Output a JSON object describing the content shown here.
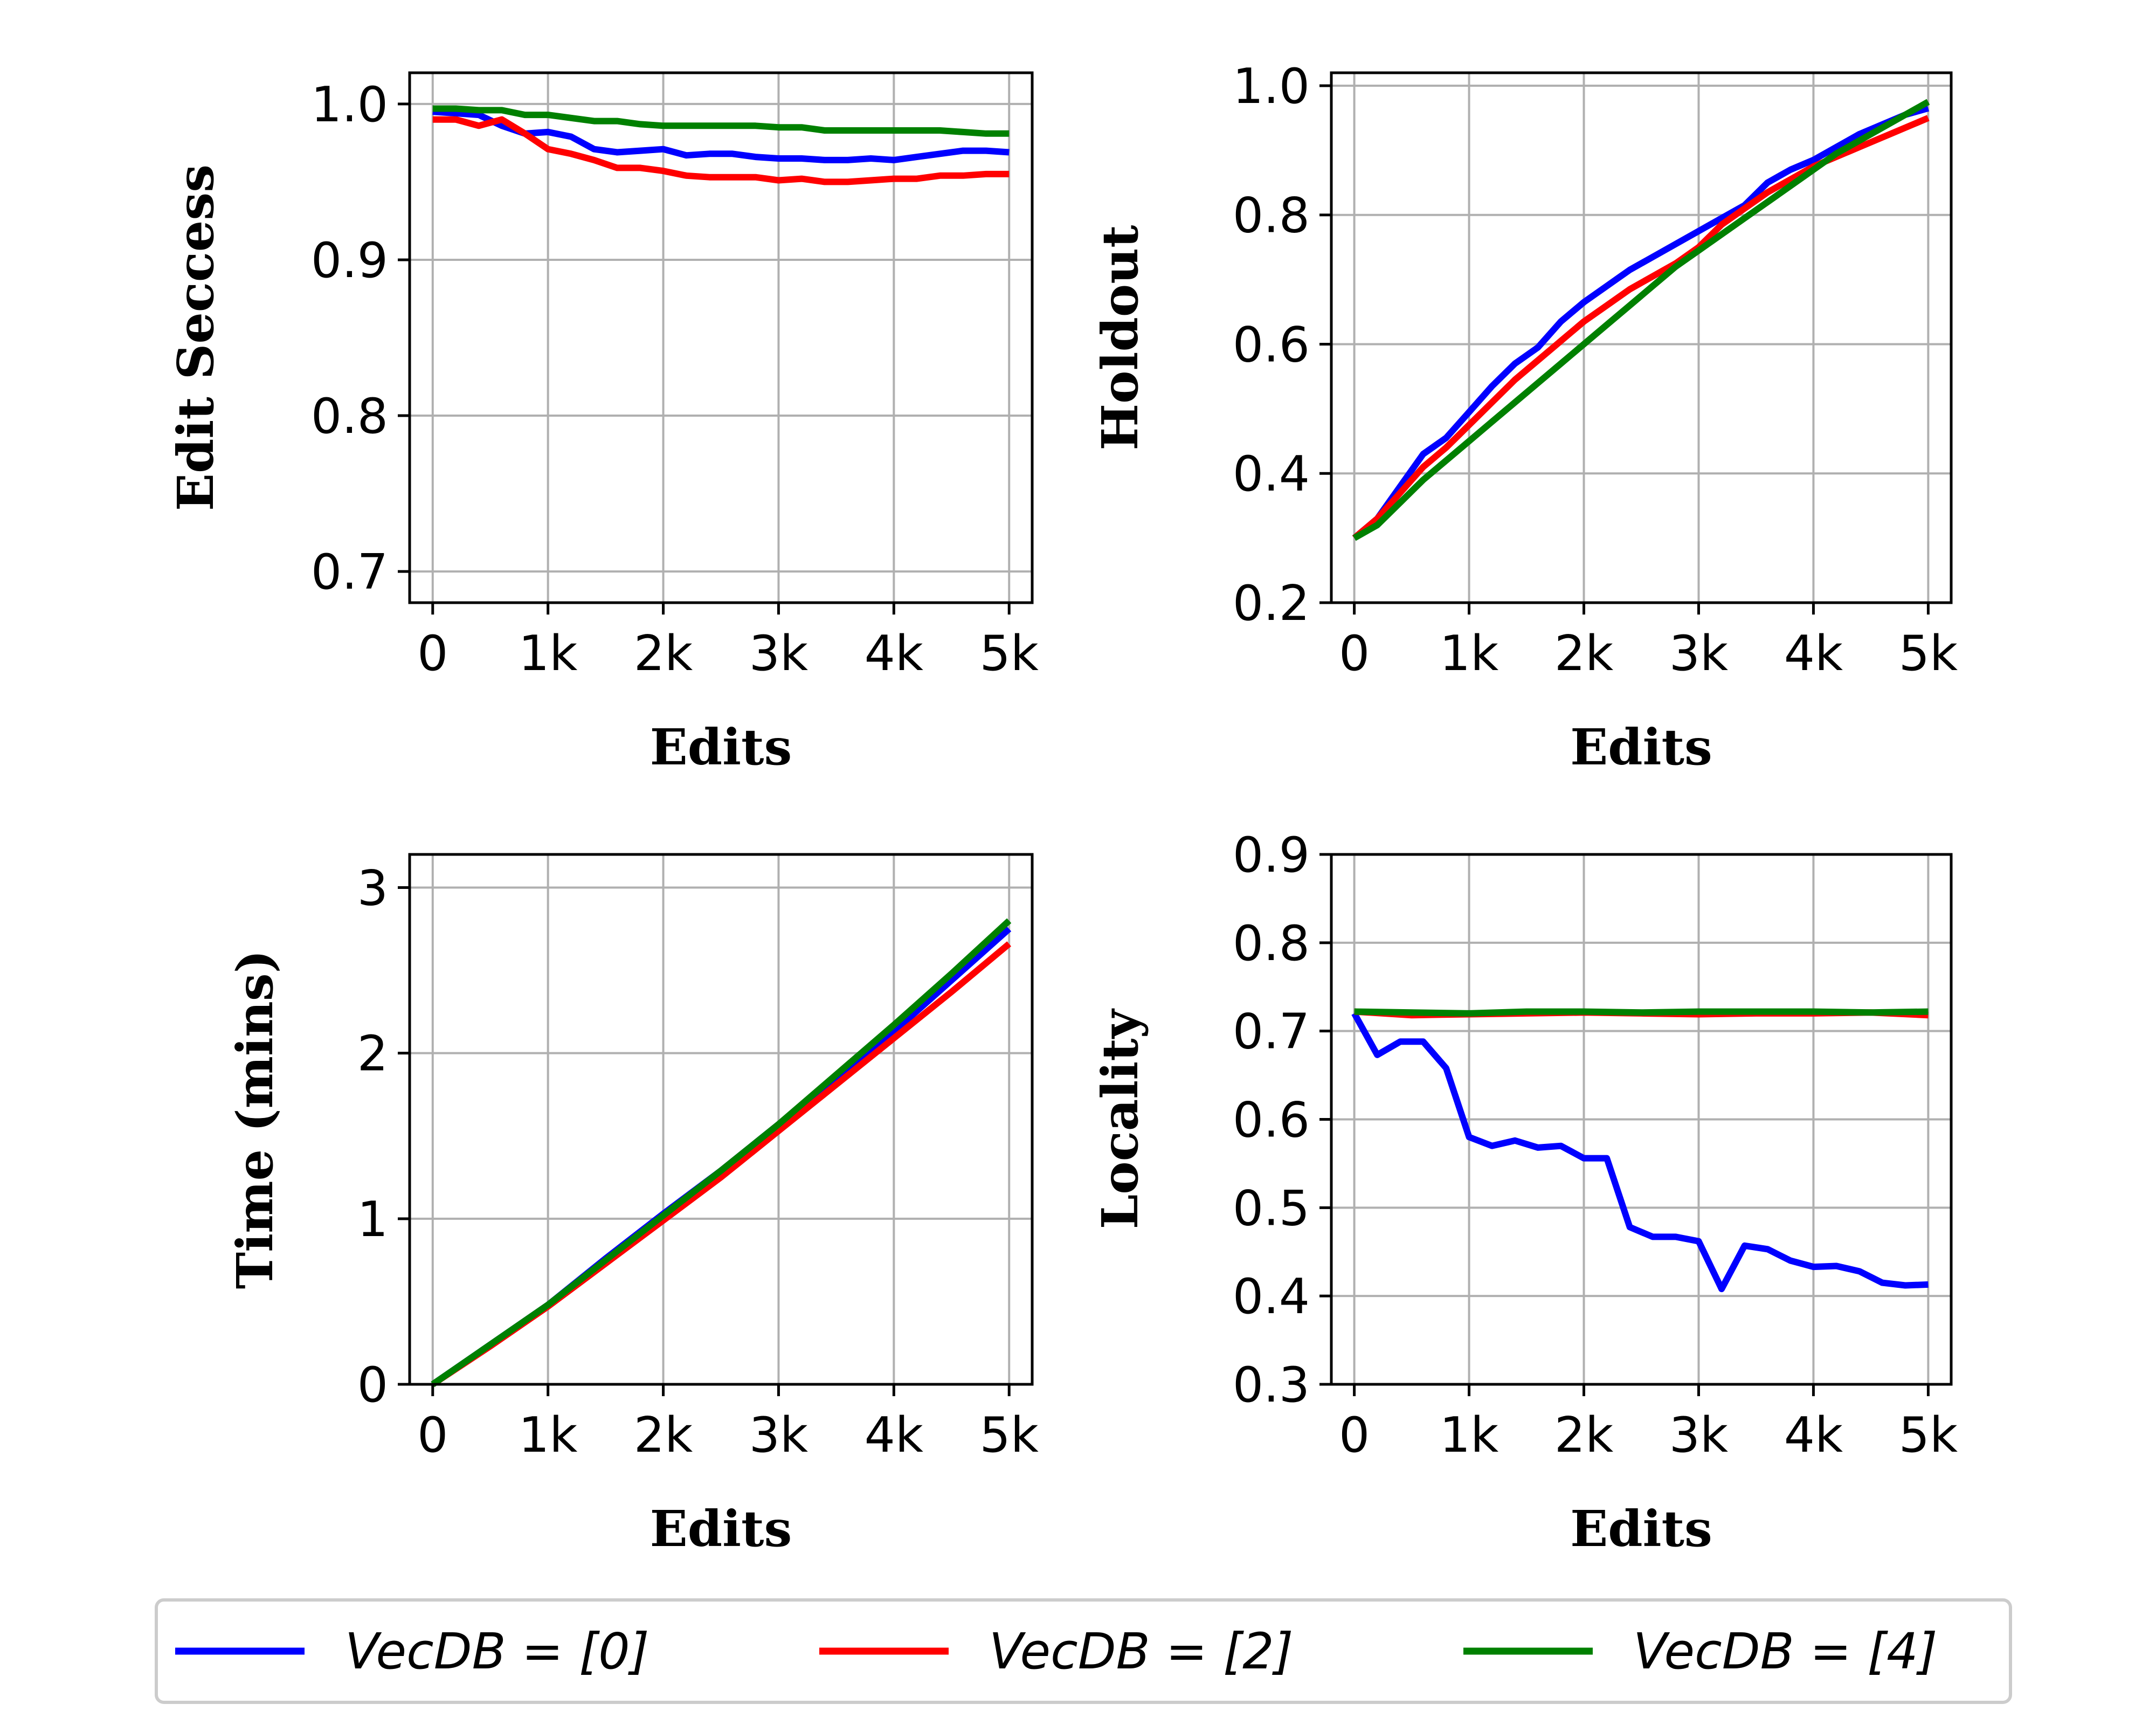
{
  "chart_data": [
    {
      "type": "line",
      "ylabel": "Edit Seccess",
      "xlabel": "Edits",
      "xlim": [
        -200,
        5200
      ],
      "ylim": [
        0.68,
        1.02
      ],
      "xticks": [
        0,
        1000,
        2000,
        3000,
        4000,
        5000
      ],
      "xtick_labels": [
        "0",
        "1k",
        "2k",
        "3k",
        "4k",
        "5k"
      ],
      "yticks": [
        0.7,
        0.8,
        0.9,
        1.0
      ],
      "ytick_labels": [
        "0.7",
        "0.8",
        "0.9",
        "1.0"
      ],
      "grid": true,
      "series": [
        {
          "name": "VecDB=[0]",
          "color": "#0000ff",
          "x": [
            0,
            200,
            400,
            600,
            800,
            1000,
            1200,
            1400,
            1600,
            1800,
            2000,
            2200,
            2400,
            2600,
            2800,
            3000,
            3200,
            3400,
            3600,
            3800,
            4000,
            4200,
            4400,
            4600,
            4800,
            5000
          ],
          "y": [
            0.995,
            0.994,
            0.993,
            0.986,
            0.981,
            0.982,
            0.979,
            0.971,
            0.969,
            0.97,
            0.971,
            0.967,
            0.968,
            0.968,
            0.966,
            0.965,
            0.965,
            0.964,
            0.964,
            0.965,
            0.964,
            0.966,
            0.968,
            0.97,
            0.97,
            0.969
          ]
        },
        {
          "name": "VecDB=[2]",
          "color": "#ff0000",
          "x": [
            0,
            200,
            400,
            600,
            800,
            1000,
            1200,
            1400,
            1600,
            1800,
            2000,
            2200,
            2400,
            2600,
            2800,
            3000,
            3200,
            3400,
            3600,
            3800,
            4000,
            4200,
            4400,
            4600,
            4800,
            5000
          ],
          "y": [
            0.99,
            0.99,
            0.986,
            0.99,
            0.981,
            0.971,
            0.968,
            0.964,
            0.959,
            0.959,
            0.957,
            0.954,
            0.953,
            0.953,
            0.953,
            0.951,
            0.952,
            0.95,
            0.95,
            0.951,
            0.952,
            0.952,
            0.954,
            0.954,
            0.955,
            0.955
          ]
        },
        {
          "name": "VecDB=[4]",
          "color": "#008000",
          "x": [
            0,
            200,
            400,
            600,
            800,
            1000,
            1200,
            1400,
            1600,
            1800,
            2000,
            2200,
            2400,
            2600,
            2800,
            3000,
            3200,
            3400,
            3600,
            3800,
            4000,
            4200,
            4400,
            4600,
            4800,
            5000
          ],
          "y": [
            0.997,
            0.997,
            0.996,
            0.996,
            0.993,
            0.993,
            0.991,
            0.989,
            0.989,
            0.987,
            0.986,
            0.986,
            0.986,
            0.986,
            0.986,
            0.985,
            0.985,
            0.983,
            0.983,
            0.983,
            0.983,
            0.983,
            0.983,
            0.982,
            0.981,
            0.981
          ]
        }
      ]
    },
    {
      "type": "line",
      "ylabel": "Holdout",
      "xlabel": "Edits",
      "xlim": [
        -200,
        5200
      ],
      "ylim": [
        0.2,
        1.02
      ],
      "xticks": [
        0,
        1000,
        2000,
        3000,
        4000,
        5000
      ],
      "xtick_labels": [
        "0",
        "1k",
        "2k",
        "3k",
        "4k",
        "5k"
      ],
      "yticks": [
        0.2,
        0.4,
        0.6,
        0.8,
        1.0
      ],
      "ytick_labels": [
        "0.2",
        "0.4",
        "0.6",
        "0.8",
        "1.0"
      ],
      "grid": true,
      "series": [
        {
          "name": "VecDB=[0]",
          "color": "#0000ff",
          "x": [
            0,
            200,
            400,
            600,
            800,
            1000,
            1200,
            1400,
            1600,
            1800,
            2000,
            2200,
            2400,
            2600,
            2800,
            3000,
            3200,
            3400,
            3600,
            3800,
            4000,
            4200,
            4400,
            4600,
            4800,
            5000
          ],
          "y": [
            0.3,
            0.33,
            0.38,
            0.43,
            0.455,
            0.495,
            0.535,
            0.57,
            0.595,
            0.635,
            0.665,
            0.69,
            0.715,
            0.735,
            0.755,
            0.775,
            0.795,
            0.815,
            0.85,
            0.87,
            0.885,
            0.905,
            0.925,
            0.94,
            0.955,
            0.965
          ]
        },
        {
          "name": "VecDB=[2]",
          "color": "#ff0000",
          "x": [
            0,
            200,
            400,
            600,
            800,
            1000,
            1200,
            1400,
            1600,
            1800,
            2000,
            2200,
            2400,
            2600,
            2800,
            3000,
            3200,
            3400,
            3600,
            3800,
            4000,
            4200,
            4400,
            4600,
            4800,
            5000
          ],
          "y": [
            0.3,
            0.33,
            0.37,
            0.41,
            0.44,
            0.475,
            0.51,
            0.545,
            0.575,
            0.605,
            0.635,
            0.66,
            0.685,
            0.705,
            0.725,
            0.75,
            0.785,
            0.81,
            0.835,
            0.855,
            0.875,
            0.89,
            0.905,
            0.92,
            0.935,
            0.95
          ]
        },
        {
          "name": "VecDB=[4]",
          "color": "#008000",
          "x": [
            0,
            200,
            400,
            600,
            800,
            1000,
            1200,
            1400,
            1600,
            1800,
            2000,
            2200,
            2400,
            2600,
            2800,
            3000,
            3200,
            3400,
            3600,
            3800,
            4000,
            4200,
            4400,
            4600,
            4800,
            5000
          ],
          "y": [
            0.3,
            0.32,
            0.355,
            0.39,
            0.42,
            0.45,
            0.48,
            0.51,
            0.54,
            0.57,
            0.6,
            0.63,
            0.66,
            0.69,
            0.72,
            0.745,
            0.77,
            0.795,
            0.82,
            0.845,
            0.87,
            0.895,
            0.915,
            0.935,
            0.955,
            0.975
          ]
        }
      ]
    },
    {
      "type": "line",
      "ylabel": "Time (mins)",
      "xlabel": "Edits",
      "xlim": [
        -200,
        5200
      ],
      "ylim": [
        0,
        3.2
      ],
      "xticks": [
        0,
        1000,
        2000,
        3000,
        4000,
        5000
      ],
      "xtick_labels": [
        "0",
        "1k",
        "2k",
        "3k",
        "4k",
        "5k"
      ],
      "yticks": [
        0,
        1,
        2,
        3
      ],
      "ytick_labels": [
        "0",
        "1",
        "2",
        "3"
      ],
      "grid": true,
      "series": [
        {
          "name": "VecDB=[0]",
          "color": "#0000ff",
          "x": [
            0,
            500,
            1000,
            1500,
            2000,
            2500,
            3000,
            3500,
            4000,
            4500,
            5000
          ],
          "y": [
            0,
            0.24,
            0.48,
            0.76,
            1.03,
            1.29,
            1.57,
            1.85,
            2.13,
            2.44,
            2.75
          ]
        },
        {
          "name": "VecDB=[2]",
          "color": "#ff0000",
          "x": [
            0,
            500,
            1000,
            1500,
            2000,
            2500,
            3000,
            3500,
            4000,
            4500,
            5000
          ],
          "y": [
            0,
            0.23,
            0.47,
            0.73,
            0.99,
            1.25,
            1.53,
            1.81,
            2.09,
            2.37,
            2.66
          ]
        },
        {
          "name": "VecDB=[4]",
          "color": "#008000",
          "x": [
            0,
            500,
            1000,
            1500,
            2000,
            2500,
            3000,
            3500,
            4000,
            4500,
            5000
          ],
          "y": [
            0,
            0.24,
            0.48,
            0.75,
            1.02,
            1.29,
            1.57,
            1.87,
            2.17,
            2.48,
            2.8
          ]
        }
      ]
    },
    {
      "type": "line",
      "ylabel": "Locality",
      "xlabel": "Edits",
      "xlim": [
        -200,
        5200
      ],
      "ylim": [
        0.3,
        0.9
      ],
      "xticks": [
        0,
        1000,
        2000,
        3000,
        4000,
        5000
      ],
      "xtick_labels": [
        "0",
        "1k",
        "2k",
        "3k",
        "4k",
        "5k"
      ],
      "yticks": [
        0.3,
        0.4,
        0.5,
        0.6,
        0.7,
        0.8,
        0.9
      ],
      "ytick_labels": [
        "0.3",
        "0.4",
        "0.5",
        "0.6",
        "0.7",
        "0.8",
        "0.9"
      ],
      "grid": true,
      "series": [
        {
          "name": "VecDB=[0]",
          "color": "#0000ff",
          "x": [
            0,
            200,
            400,
            600,
            800,
            1000,
            1200,
            1400,
            1600,
            1800,
            2000,
            2200,
            2400,
            2600,
            2800,
            3000,
            3200,
            3400,
            3600,
            3800,
            4000,
            4200,
            4400,
            4600,
            4800,
            5000
          ],
          "y": [
            0.72,
            0.673,
            0.688,
            0.688,
            0.658,
            0.58,
            0.57,
            0.576,
            0.568,
            0.57,
            0.556,
            0.556,
            0.478,
            0.467,
            0.467,
            0.462,
            0.408,
            0.457,
            0.453,
            0.44,
            0.433,
            0.434,
            0.428,
            0.415,
            0.412,
            0.413
          ]
        },
        {
          "name": "VecDB=[2]",
          "color": "#ff0000",
          "x": [
            0,
            500,
            1000,
            1500,
            2000,
            2500,
            3000,
            3500,
            4000,
            4500,
            5000
          ],
          "y": [
            0.722,
            0.718,
            0.719,
            0.72,
            0.721,
            0.72,
            0.719,
            0.72,
            0.72,
            0.721,
            0.718
          ]
        },
        {
          "name": "VecDB=[4]",
          "color": "#008000",
          "x": [
            0,
            500,
            1000,
            1500,
            2000,
            2500,
            3000,
            3500,
            4000,
            4500,
            5000
          ],
          "y": [
            0.722,
            0.721,
            0.72,
            0.722,
            0.722,
            0.721,
            0.722,
            0.722,
            0.722,
            0.721,
            0.722
          ]
        }
      ]
    }
  ],
  "legend": {
    "placement": "bottom",
    "entries": [
      {
        "label": "VecDB = [0]",
        "color": "#0000ff"
      },
      {
        "label": "VecDB = [2]",
        "color": "#ff0000"
      },
      {
        "label": "VecDB = [4]",
        "color": "#008000"
      }
    ]
  }
}
